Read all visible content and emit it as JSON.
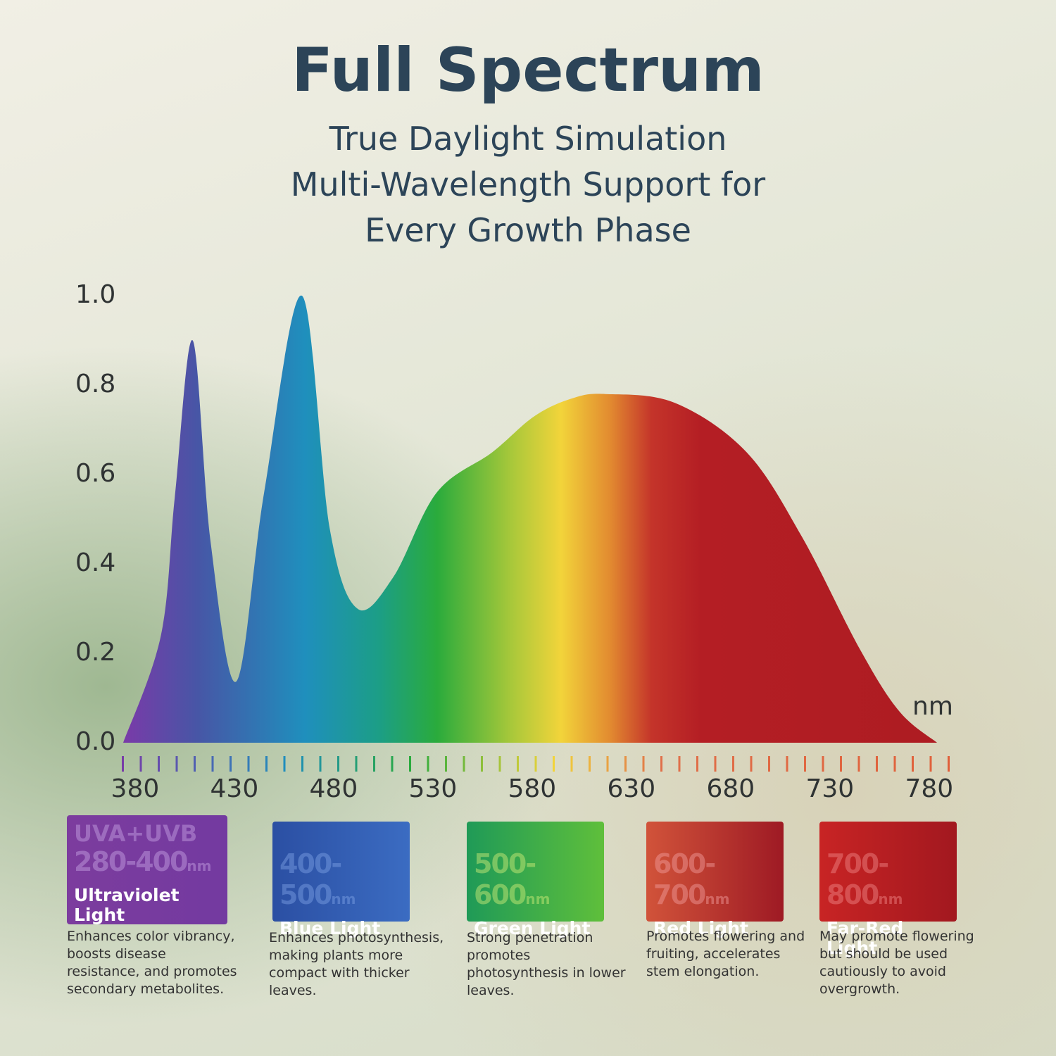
{
  "header": {
    "title": "Full Spectrum",
    "subtitle_lines": [
      "True Daylight Simulation",
      "Multi-Wavelength Support for",
      "Every Growth Phase"
    ]
  },
  "chart_data": {
    "type": "area",
    "x": [
      374,
      393,
      400,
      409,
      418,
      431,
      445,
      464,
      478,
      492,
      510,
      532,
      560,
      581,
      600,
      617,
      652,
      688,
      716,
      745,
      765,
      784
    ],
    "values": [
      0,
      0.24,
      0.55,
      0.9,
      0.45,
      0.137,
      0.56,
      1.0,
      0.48,
      0.3,
      0.37,
      0.56,
      0.65,
      0.73,
      0.77,
      0.78,
      0.76,
      0.65,
      0.46,
      0.21,
      0.07,
      0
    ],
    "xlim": [
      374,
      790
    ],
    "ylim": [
      0,
      1
    ],
    "xticks": [
      380,
      430,
      480,
      530,
      580,
      630,
      680,
      730,
      780
    ],
    "yticks": [
      {
        "value": 0,
        "label": "0.0"
      },
      {
        "value": 0.2,
        "label": "0.2"
      },
      {
        "value": 0.4,
        "label": "0.4"
      },
      {
        "value": 0.6,
        "label": "0.6"
      },
      {
        "value": 0.8,
        "label": "0.8"
      },
      {
        "value": 1,
        "label": "1.0"
      }
    ],
    "x_label": "nm"
  },
  "cards": [
    {
      "tag": "UVA+UVB",
      "range": "280-400",
      "unit": "nm",
      "name": "Ultraviolet Light",
      "description": "Enhances color vibrancy, boosts disease resistance, and promotes secondary metabolites."
    },
    {
      "range": "400-500",
      "unit": "nm",
      "name": "Blue Light",
      "description": "Enhances photosynthesis, making plants more compact with thicker leaves."
    },
    {
      "range": "500-600",
      "unit": "nm",
      "name": "Green Light",
      "description": "Strong penetration promotes photosynthesis in lower leaves."
    },
    {
      "range": "600-700",
      "unit": "nm",
      "name": "Red Light",
      "description": "Promotes flowering and fruiting, accelerates stem elongation."
    },
    {
      "range": "700-800",
      "unit": "nm",
      "name": "Far-Red Light",
      "description": "May promote flowering but should be used cautiously to avoid overgrowth."
    }
  ]
}
